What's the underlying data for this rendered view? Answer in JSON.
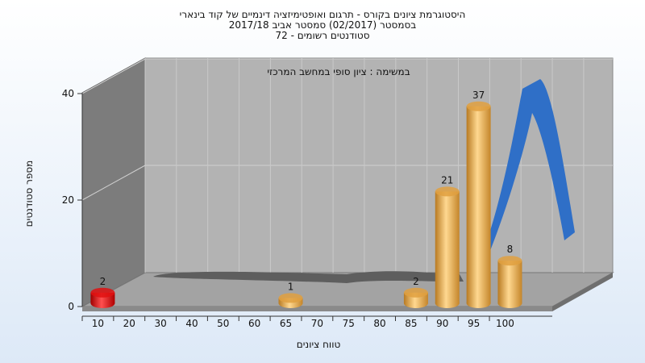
{
  "chart_data": {
    "type": "bar",
    "title_lines": [
      "היסטוגרמת ציונים בקורס - תרגום ואופטימיזציה דינמיים של קוד בינארי",
      "בסמסטר  (02/2017)  סמסטר אביב 2017/18",
      "סטודנטים רשומים - 72"
    ],
    "subtitle": "במשימה : ציון סופי במחשב המרכזי",
    "xlabel": "טווח ציונים",
    "ylabel": "מספר סטודנטים",
    "categories": [
      "10",
      "20",
      "30",
      "40",
      "50",
      "60",
      "65",
      "70",
      "75",
      "80",
      "85",
      "90",
      "95",
      "100"
    ],
    "values": [
      2,
      0,
      0,
      0,
      0,
      0,
      1,
      0,
      0,
      0,
      2,
      21,
      37,
      8
    ],
    "bar_colors": [
      "#e01010",
      "#e0a040",
      "#e0a040",
      "#e0a040",
      "#e0a040",
      "#e0a040",
      "#e0a040",
      "#e0a040",
      "#e0a040",
      "#e0a040",
      "#e0a040",
      "#e0a040",
      "#e0a040",
      "#e0a040"
    ],
    "y_ticks": [
      "0",
      "20",
      "40"
    ],
    "ylim": [
      0,
      40
    ],
    "grid": true,
    "colors": {
      "curve": "#2f6fc7",
      "shadow": "#5e5e5e",
      "wall": "#7c7c7c",
      "back_wall": "#b3b3b3"
    }
  }
}
